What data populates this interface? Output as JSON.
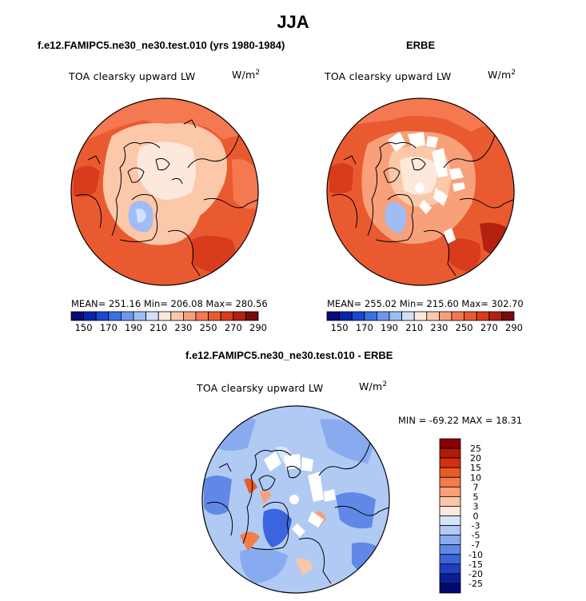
{
  "page": {
    "title": "JJA"
  },
  "panels": [
    {
      "id": "model",
      "title": "f.e12.FAMIPC5.ne30_ne30.test.010 (yrs 1980-1984)",
      "variable": "TOA clearsky upward LW",
      "units_base": "W/m",
      "units_exp": "2",
      "stats_text": "MEAN= 251.16   Min= 206.08   Max= 280.56",
      "colorbar_ticks": [
        "150",
        "170",
        "190",
        "210",
        "230",
        "250",
        "270",
        "290"
      ]
    },
    {
      "id": "obs",
      "title": "ERBE",
      "variable": "TOA clearsky upward LW",
      "units_base": "W/m",
      "units_exp": "2",
      "stats_text": "MEAN= 255.02   Min= 215.60   Max= 302.70",
      "colorbar_ticks": [
        "150",
        "170",
        "190",
        "210",
        "230",
        "250",
        "270",
        "290"
      ]
    },
    {
      "id": "diff",
      "title": "f.e12.FAMIPC5.ne30_ne30.test.010 - ERBE",
      "variable": "TOA clearsky upward LW",
      "units_base": "W/m",
      "units_exp": "2",
      "stats_text": "MIN = -69.22  MAX =  18.31",
      "colorbar_ticks": [
        "25",
        "20",
        "15",
        "10",
        "7",
        "5",
        "3",
        "0",
        "-3",
        "-5",
        "-7",
        "-10",
        "-15",
        "-20",
        "-25"
      ]
    }
  ],
  "colors": {
    "abs_scale": [
      "#0a0a78",
      "#0a24a8",
      "#1e46d2",
      "#3c6ee6",
      "#6e96f0",
      "#a0bcf5",
      "#d2e0fa",
      "#fde8dc",
      "#fcc8aa",
      "#f8a07a",
      "#f47850",
      "#ea5a30",
      "#d83c1c",
      "#b42010",
      "#7a0a0a"
    ],
    "diff_scale": [
      "#8b0000",
      "#b01a08",
      "#d23010",
      "#ea5a28",
      "#f47c4a",
      "#f8a07a",
      "#fbc6a8",
      "#fde8dc",
      "#d8e6fa",
      "#b0caf4",
      "#88aaee",
      "#6088e6",
      "#3c64dc",
      "#1e40c0",
      "#0a1e96",
      "#000a6e"
    ],
    "coast": "#000000",
    "missing": "#ffffff"
  },
  "chart_data": [
    {
      "type": "heatmap",
      "projection": "north polar stereographic",
      "title": "f.e12.FAMIPC5.ne30_ne30.test.010 (yrs 1980-1984)",
      "variable": "TOA clearsky upward LW",
      "units": "W/m2",
      "mean": 251.16,
      "min": 206.08,
      "max": 280.56,
      "contour_levels": [
        150,
        160,
        170,
        180,
        190,
        200,
        210,
        220,
        230,
        240,
        250,
        260,
        270,
        280,
        290
      ],
      "field_description_levels": {
        "pole_region": 230,
        "greenland_interior": 210,
        "midlatitudes": 260,
        "continents_south": 275
      }
    },
    {
      "type": "heatmap",
      "projection": "north polar stereographic",
      "title": "ERBE",
      "variable": "TOA clearsky upward LW",
      "units": "W/m2",
      "mean": 255.02,
      "min": 215.6,
      "max": 302.7,
      "contour_levels": [
        150,
        160,
        170,
        180,
        190,
        200,
        210,
        220,
        230,
        240,
        250,
        260,
        270,
        280,
        290
      ],
      "missing_data": true
    },
    {
      "type": "heatmap",
      "projection": "north polar stereographic",
      "title": "f.e12.FAMIPC5.ne30_ne30.test.010 - ERBE",
      "variable": "TOA clearsky upward LW",
      "units": "W/m2",
      "min": -69.22,
      "max": 18.31,
      "contour_levels": [
        -25,
        -20,
        -15,
        -10,
        -7,
        -5,
        -3,
        0,
        3,
        5,
        7,
        10,
        15,
        20,
        25
      ],
      "missing_data": true
    }
  ]
}
